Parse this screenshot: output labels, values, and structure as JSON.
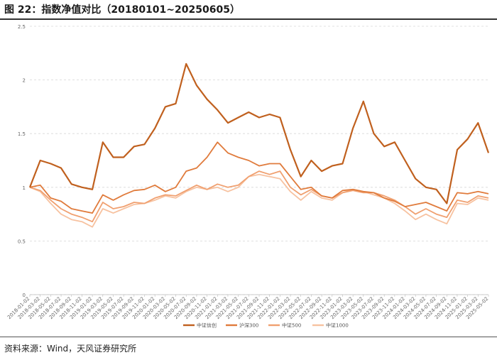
{
  "header": {
    "title": "图 22：指数净值对比（20180101~20250605）"
  },
  "footer": {
    "source": "资料来源：Wind，天风证券研究所"
  },
  "chart_data": {
    "type": "line",
    "title": "图 22：指数净值对比（20180101~20250605）",
    "xlabel": "",
    "ylabel": "",
    "ylim": [
      0,
      2.5
    ],
    "yticks": [
      "0",
      "0.5",
      "1",
      "1.5",
      "2",
      "2.5"
    ],
    "grid": true,
    "legend_position": "bottom",
    "x": [
      "2018-01-02",
      "2018-03-02",
      "2018-05-02",
      "2018-07-02",
      "2018-09-02",
      "2018-11-02",
      "2019-01-02",
      "2019-03-02",
      "2019-05-02",
      "2019-07-02",
      "2019-09-02",
      "2019-11-02",
      "2020-01-02",
      "2020-03-02",
      "2020-05-02",
      "2020-07-02",
      "2020-09-02",
      "2020-11-02",
      "2021-01-02",
      "2021-03-02",
      "2021-05-02",
      "2021-07-02",
      "2021-09-02",
      "2021-11-02",
      "2022-01-02",
      "2022-03-02",
      "2022-05-02",
      "2022-07-02",
      "2022-09-02",
      "2022-11-02",
      "2023-01-02",
      "2023-03-02",
      "2023-05-02",
      "2023-07-02",
      "2023-09-02",
      "2023-11-02",
      "2024-01-02",
      "2024-03-02",
      "2024-05-02",
      "2024-07-02",
      "2024-09-02",
      "2024-11-02",
      "2025-01-02",
      "2025-03-02",
      "2025-05-02"
    ],
    "series": [
      {
        "name": "中证信创",
        "color": "#c0601e",
        "values": [
          1.0,
          1.25,
          1.22,
          1.18,
          1.03,
          1.0,
          0.98,
          1.42,
          1.28,
          1.28,
          1.38,
          1.4,
          1.55,
          1.75,
          1.78,
          2.15,
          1.95,
          1.82,
          1.72,
          1.6,
          1.65,
          1.7,
          1.65,
          1.68,
          1.65,
          1.35,
          1.1,
          1.25,
          1.15,
          1.2,
          1.22,
          1.55,
          1.8,
          1.5,
          1.38,
          1.42,
          1.25,
          1.08,
          1.0,
          0.98,
          0.85,
          1.35,
          1.45,
          1.6,
          1.32
        ]
      },
      {
        "name": "沪深300",
        "color": "#e07b3c",
        "values": [
          1.0,
          1.02,
          0.9,
          0.87,
          0.8,
          0.78,
          0.76,
          0.93,
          0.88,
          0.93,
          0.97,
          0.98,
          1.02,
          0.96,
          1.0,
          1.15,
          1.18,
          1.28,
          1.42,
          1.32,
          1.28,
          1.25,
          1.2,
          1.22,
          1.22,
          1.1,
          0.98,
          1.0,
          0.92,
          0.9,
          0.97,
          0.98,
          0.96,
          0.95,
          0.9,
          0.87,
          0.82,
          0.84,
          0.86,
          0.82,
          0.78,
          0.95,
          0.94,
          0.96,
          0.94
        ]
      },
      {
        "name": "中证500",
        "color": "#f0a070",
        "values": [
          1.0,
          0.97,
          0.88,
          0.8,
          0.75,
          0.72,
          0.68,
          0.86,
          0.8,
          0.82,
          0.86,
          0.85,
          0.9,
          0.93,
          0.92,
          0.97,
          1.02,
          0.98,
          1.03,
          1.0,
          1.02,
          1.1,
          1.15,
          1.12,
          1.15,
          1.0,
          0.93,
          0.98,
          0.92,
          0.9,
          0.95,
          0.97,
          0.95,
          0.95,
          0.92,
          0.88,
          0.82,
          0.75,
          0.8,
          0.75,
          0.72,
          0.88,
          0.86,
          0.92,
          0.9
        ]
      },
      {
        "name": "中证1000",
        "color": "#f7c2a0",
        "values": [
          1.0,
          0.96,
          0.85,
          0.75,
          0.7,
          0.68,
          0.63,
          0.8,
          0.76,
          0.8,
          0.84,
          0.85,
          0.88,
          0.92,
          0.9,
          0.96,
          1.0,
          0.98,
          1.0,
          0.96,
          1.0,
          1.1,
          1.12,
          1.1,
          1.08,
          0.96,
          0.88,
          0.96,
          0.9,
          0.88,
          0.95,
          0.98,
          0.96,
          0.93,
          0.9,
          0.85,
          0.78,
          0.7,
          0.75,
          0.7,
          0.66,
          0.85,
          0.84,
          0.9,
          0.88
        ]
      }
    ]
  }
}
